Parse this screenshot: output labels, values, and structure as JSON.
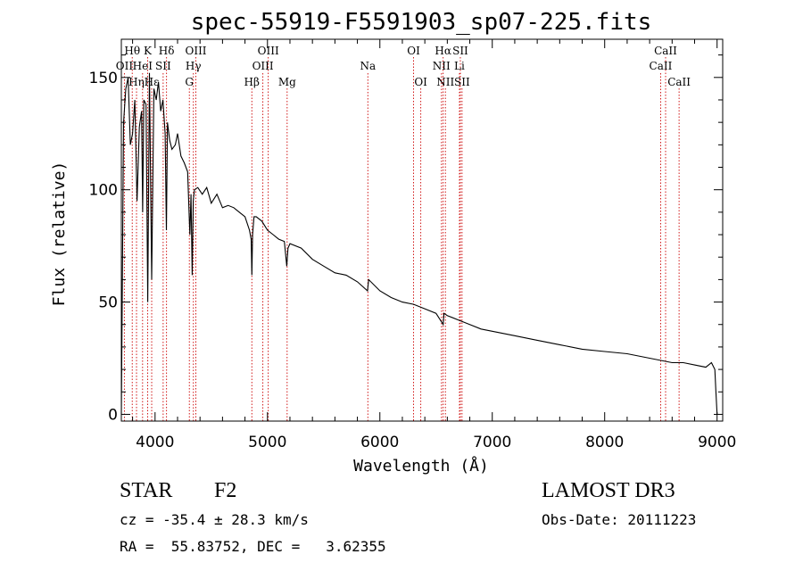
{
  "title": "spec-55919-F5591903_sp07-225.fits",
  "chart_data": {
    "type": "line",
    "title": "spec-55919-F5591903_sp07-225.fits",
    "xlabel": "Wavelength (Å)",
    "ylabel": "Flux (relative)",
    "xlim": [
      3700,
      9050
    ],
    "ylim": [
      -3,
      167
    ],
    "xticks": [
      4000,
      5000,
      6000,
      7000,
      8000,
      9000
    ],
    "yticks": [
      0,
      50,
      100,
      150
    ],
    "series": [
      {
        "name": "flux",
        "x": [
          3700,
          3720,
          3740,
          3760,
          3780,
          3800,
          3820,
          3840,
          3860,
          3880,
          3890,
          3900,
          3920,
          3935,
          3950,
          3970,
          3990,
          4010,
          4030,
          4050,
          4070,
          4090,
          4101,
          4110,
          4130,
          4150,
          4180,
          4200,
          4230,
          4260,
          4290,
          4310,
          4320,
          4330,
          4340,
          4350,
          4380,
          4420,
          4460,
          4500,
          4550,
          4600,
          4650,
          4700,
          4750,
          4800,
          4840,
          4855,
          4861,
          4868,
          4880,
          4900,
          4950,
          5000,
          5050,
          5100,
          5150,
          5172,
          5183,
          5200,
          5300,
          5400,
          5500,
          5600,
          5700,
          5800,
          5890,
          5900,
          6000,
          6100,
          6200,
          6300,
          6400,
          6500,
          6563,
          6570,
          6600,
          6700,
          6800,
          6900,
          7000,
          7200,
          7400,
          7600,
          7800,
          8000,
          8200,
          8400,
          8500,
          8600,
          8700,
          8800,
          8900,
          8950,
          8980,
          8990,
          9000
        ],
        "values": [
          0,
          130,
          145,
          150,
          120,
          125,
          140,
          95,
          128,
          135,
          90,
          140,
          138,
          50,
          152,
          60,
          145,
          140,
          148,
          135,
          140,
          125,
          82,
          130,
          122,
          118,
          120,
          125,
          115,
          112,
          108,
          80,
          98,
          62,
          95,
          100,
          101,
          98,
          101,
          94,
          98,
          92,
          93,
          92,
          90,
          88,
          82,
          78,
          62,
          80,
          88,
          88,
          86,
          82,
          80,
          78,
          77,
          66,
          74,
          76,
          74,
          69,
          66,
          63,
          62,
          59,
          55,
          60,
          55,
          52,
          50,
          49,
          47,
          45,
          40,
          45,
          44,
          42,
          40,
          38,
          37,
          35,
          33,
          31,
          29,
          28,
          27,
          25,
          24,
          23,
          23,
          22,
          21,
          23,
          20,
          10,
          0
        ]
      }
    ],
    "lines": [
      {
        "name": "Hθ",
        "wl": 3797,
        "tier": 1
      },
      {
        "name": "OII",
        "wl": 3727,
        "tier": 2
      },
      {
        "name": "Hη",
        "wl": 3835,
        "tier": 3
      },
      {
        "name": "K",
        "wl": 3934,
        "tier": 1
      },
      {
        "name": "HeI",
        "wl": 3889,
        "tier": 2
      },
      {
        "name": "Hε",
        "wl": 3970,
        "tier": 3
      },
      {
        "name": "SII",
        "wl": 4072,
        "tier": 2
      },
      {
        "name": "Hδ",
        "wl": 4102,
        "tier": 1
      },
      {
        "name": "OIII",
        "wl": 4363,
        "tier": 1
      },
      {
        "name": "Hγ",
        "wl": 4341,
        "tier": 2
      },
      {
        "name": "G",
        "wl": 4305,
        "tier": 3
      },
      {
        "name": "Hβ",
        "wl": 4861,
        "tier": 3
      },
      {
        "name": "OIII",
        "wl": 5007,
        "tier": 1
      },
      {
        "name": "OIII",
        "wl": 4959,
        "tier": 2
      },
      {
        "name": "Mg",
        "wl": 5175,
        "tier": 3
      },
      {
        "name": "Na",
        "wl": 5893,
        "tier": 2
      },
      {
        "name": "OI",
        "wl": 6300,
        "tier": 1
      },
      {
        "name": "OI",
        "wl": 6364,
        "tier": 3
      },
      {
        "name": "Hα",
        "wl": 6563,
        "tier": 1
      },
      {
        "name": "NII",
        "wl": 6548,
        "tier": 2
      },
      {
        "name": "NII",
        "wl": 6583,
        "tier": 3
      },
      {
        "name": "SII",
        "wl": 6716,
        "tier": 1
      },
      {
        "name": "Li",
        "wl": 6708,
        "tier": 2
      },
      {
        "name": "SII",
        "wl": 6731,
        "tier": 3
      },
      {
        "name": "CaII",
        "wl": 8542,
        "tier": 1
      },
      {
        "name": "CaII",
        "wl": 8498,
        "tier": 2
      },
      {
        "name": "CaII",
        "wl": 8662,
        "tier": 3
      }
    ]
  },
  "info": {
    "object_class": "STAR",
    "subclass": "F2",
    "survey": "LAMOST DR3",
    "cz_line": "cz = -35.4 ± 28.3 km/s",
    "obs_date_line": "Obs-Date: 20111223",
    "radec_line": "RA =  55.83752, DEC =   3.62355"
  },
  "colors": {
    "line_marker": "#cc0000",
    "spectrum": "#000000"
  }
}
